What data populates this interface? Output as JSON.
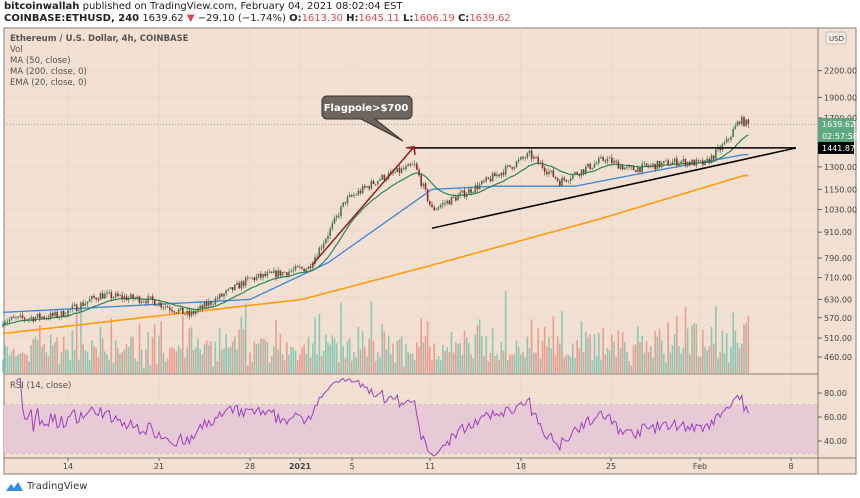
{
  "header": {
    "author": "bitcoinwallah",
    "published": "published on TradingView.com, February 04, 2021 08:02:04 EST",
    "symbol": "COINBASE:ETHUSD, 240",
    "last": "1639.62",
    "change": "−29.10 (−1.74%)",
    "o_label": "O:",
    "o": "1613.30",
    "h_label": "H:",
    "h": "1645.11",
    "l_label": "L:",
    "l": "1606.19",
    "c_label": "C:",
    "c": "1639.62"
  },
  "legend": {
    "title": "Ethereum / U.S. Dollar, 4h, COINBASE",
    "vol": "Vol",
    "ma50": "MA (50, close)",
    "ma200": "MA (200, close, 0)",
    "ema20": "EMA (20, close, 0)",
    "rsi": "RSI (14, close)"
  },
  "annotation": {
    "callout": "Flagpole>$700"
  },
  "price_axis": {
    "currency": "USD",
    "ticks": [
      "2200.00",
      "1900.00",
      "1700.00",
      "1300.00",
      "1150.00",
      "1030.00",
      "910.00",
      "790.00",
      "710.00",
      "630.00",
      "570.00",
      "510.00",
      "460.00"
    ],
    "last_price_label": "1639.62",
    "countdown_label": "02:57:58",
    "level_label": "1441.87"
  },
  "rsi_axis": {
    "ticks": [
      "80.00",
      "60.00",
      "40.00"
    ]
  },
  "time_axis": {
    "ticks": [
      "14",
      "21",
      "28",
      "2021",
      "5",
      "11",
      "18",
      "25",
      "Feb",
      "8"
    ]
  },
  "footer": {
    "brand": "TradingView"
  },
  "colors": {
    "background": "#f2e0d2",
    "up": "#3d7a4e",
    "down": "#8f2a24",
    "vol_up": "#8cc7b4",
    "vol_down": "#f09a90",
    "ma50": "#3a86d8",
    "ma200": "#ff9d0a",
    "ema20": "#1e8a5a",
    "rsi": "#9b3fbf",
    "rsi_band": "#e8cad6",
    "flagpole": "#a01818",
    "trendline": "#000000"
  },
  "chart_data": {
    "type": "candlestick",
    "title": "Ethereum / U.S. Dollar, 4h, COINBASE",
    "interval": "4h",
    "y_scale": "log",
    "ylim": [
      430,
      2300
    ],
    "x_range": [
      "2020-12-09",
      "2021-02-09"
    ],
    "grid": true,
    "close_keypoints": [
      [
        "2020-12-09T00:00",
        562
      ],
      [
        "2020-12-13T08:00",
        578
      ],
      [
        "2020-12-16T12:00",
        645
      ],
      [
        "2020-12-20T08:00",
        628
      ],
      [
        "2020-12-23T08:00",
        578
      ],
      [
        "2020-12-28T00:00",
        705
      ],
      [
        "2021-01-01T12:00",
        750
      ],
      [
        "2021-01-03T04:00",
        920
      ],
      [
        "2021-01-04T08:00",
        1080
      ],
      [
        "2021-01-07T00:00",
        1220
      ],
      [
        "2021-01-09T16:00",
        1310
      ],
      [
        "2021-01-11T00:00",
        1030
      ],
      [
        "2021-01-12T08:00",
        1080
      ],
      [
        "2021-01-14T16:00",
        1175
      ],
      [
        "2021-01-18T12:00",
        1390
      ],
      [
        "2021-01-20T20:00",
        1200
      ],
      [
        "2021-01-24T08:00",
        1360
      ],
      [
        "2021-01-26T04:00",
        1280
      ],
      [
        "2021-01-30T00:00",
        1340
      ],
      [
        "2021-02-01T00:00",
        1320
      ],
      [
        "2021-02-02T16:00",
        1490
      ],
      [
        "2021-02-03T16:00",
        1680
      ],
      [
        "2021-02-04T08:00",
        1639.62
      ]
    ],
    "ma50_keypoints": [
      [
        "2020-12-09",
        587
      ],
      [
        "2020-12-28",
        630
      ],
      [
        "2021-01-03",
        770
      ],
      [
        "2021-01-11",
        1150
      ],
      [
        "2021-01-16",
        1170
      ],
      [
        "2021-01-22",
        1170
      ],
      [
        "2021-01-28",
        1270
      ],
      [
        "2021-02-04",
        1390
      ]
    ],
    "ma200_keypoints": [
      [
        "2020-12-09",
        523
      ],
      [
        "2021-01-01",
        630
      ],
      [
        "2021-01-11",
        760
      ],
      [
        "2021-01-24",
        980
      ],
      [
        "2021-02-04",
        1240
      ]
    ],
    "horizontal_level": 1441.87,
    "ascending_trendline": [
      [
        "2021-01-11",
        930
      ],
      [
        "2021-02-08",
        1441.87
      ]
    ],
    "flagpole": [
      [
        "2021-01-01",
        760
      ],
      [
        "2021-01-09",
        1450
      ]
    ],
    "rsi": {
      "ylim": [
        25,
        95
      ],
      "band": [
        30,
        70
      ],
      "ticks": [
        80,
        60,
        40
      ]
    }
  }
}
